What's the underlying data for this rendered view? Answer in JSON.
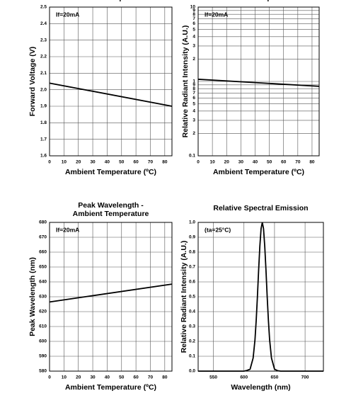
{
  "chart_data": [
    {
      "type": "line",
      "title": [
        "Ambient Temperature"
      ],
      "xlabel": "Ambient Temperature (ºC)",
      "ylabel": "Forward Voltage (V)",
      "annotation": "If=20mA",
      "x": [
        0,
        85
      ],
      "series": [
        {
          "color": "#000000",
          "values": [
            2.04,
            1.9
          ]
        }
      ],
      "xlim": [
        0,
        85
      ],
      "ylim": [
        1.6,
        2.5
      ],
      "xticks": [
        0,
        10,
        20,
        30,
        40,
        50,
        60,
        70,
        80
      ],
      "yticks": [
        1.6,
        1.7,
        1.8,
        1.9,
        {
          "value": 2,
          "label": "2.0"
        },
        2.1,
        2.2,
        2.3,
        2.4,
        2.5
      ],
      "grid": true,
      "log": false
    },
    {
      "type": "line",
      "title": [
        "Ambient Temperature"
      ],
      "xlabel": "Ambient Temperature (ºC)",
      "ylabel": "Relative Radiant Intensity (A.U.)",
      "annotation": "If=20mA",
      "x": [
        0,
        85
      ],
      "series": [
        {
          "color": "#000000",
          "values": [
            1.07,
            0.86
          ]
        }
      ],
      "xlim": [
        0,
        85
      ],
      "ylim": [
        0.1,
        10
      ],
      "xticks": [
        0,
        10,
        20,
        30,
        40,
        50,
        60,
        70,
        80
      ],
      "yticks": [
        0.1,
        {
          "value": 0.2,
          "label": "2"
        },
        {
          "value": 0.3,
          "label": "3"
        },
        {
          "value": 0.4,
          "label": "4"
        },
        {
          "value": 0.5,
          "label": "5"
        },
        {
          "value": 0.6,
          "label": "6"
        },
        {
          "value": 0.7,
          "label": "7"
        },
        {
          "value": 0.8,
          "label": "8"
        },
        {
          "value": 0.9,
          "label": "9"
        },
        1,
        2,
        3,
        4,
        5,
        6,
        7,
        8,
        9,
        10
      ],
      "grid": true,
      "log": true
    },
    {
      "type": "line",
      "title": [
        "Peak Wavelength -",
        "Ambient Temperature"
      ],
      "xlabel": "Ambient Temperature (ºC)",
      "ylabel": "Peak Wavelength (nm)",
      "annotation": "If=20mA",
      "x": [
        0,
        85
      ],
      "series": [
        {
          "color": "#000000",
          "values": [
            626.5,
            638.5
          ]
        }
      ],
      "xlim": [
        0,
        85
      ],
      "ylim": [
        580,
        680
      ],
      "xticks": [
        0,
        10,
        20,
        30,
        40,
        50,
        60,
        70,
        80
      ],
      "yticks": [
        580,
        590,
        600,
        610,
        620,
        630,
        640,
        650,
        660,
        670,
        680
      ],
      "grid": true,
      "log": false
    },
    {
      "type": "line",
      "title": [
        "Relative Spectral Emission"
      ],
      "xlabel": "Wavelength (nm)",
      "ylabel": "Relative Radiant Intensity (A.U.)",
      "annotation": "(ta=25°C)",
      "x": [
        525,
        590,
        600,
        605,
        610,
        615,
        618,
        620,
        622,
        624,
        626,
        628,
        630,
        632,
        634,
        636,
        638,
        640,
        642,
        645,
        650,
        655,
        660,
        670,
        730
      ],
      "series": [
        {
          "color": "#000000",
          "values": [
            0,
            0,
            0,
            0.005,
            0.013,
            0.088,
            0.21,
            0.34,
            0.5,
            0.68,
            0.84,
            0.958,
            1,
            0.958,
            0.84,
            0.68,
            0.5,
            0.34,
            0.21,
            0.088,
            0.013,
            0.003,
            0,
            0,
            0
          ]
        }
      ],
      "xlim": [
        525,
        730
      ],
      "ylim": [
        0,
        1
      ],
      "xticks": [
        550,
        600,
        650,
        700
      ],
      "yticks": [
        {
          "value": 0,
          "label": "0.0"
        },
        0.1,
        0.2,
        0.3,
        0.4,
        0.5,
        0.6,
        0.7,
        0.8,
        0.9,
        {
          "value": 1,
          "label": "1.0"
        }
      ],
      "grid": true,
      "log": false
    }
  ]
}
